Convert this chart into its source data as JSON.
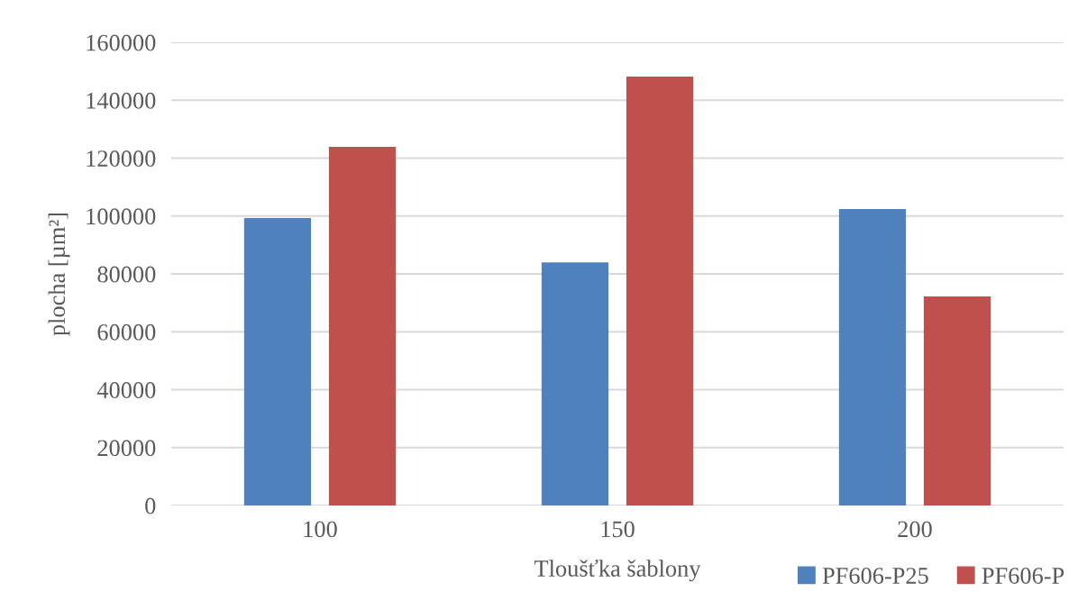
{
  "chart_data": {
    "type": "bar",
    "xlabel": "Tloušťka šablony",
    "ylabel": "plocha [µm²]",
    "categories": [
      "100",
      "150",
      "200"
    ],
    "series": [
      {
        "name": "PF606-P25",
        "color": "#4f81bd",
        "values": [
          99300,
          84000,
          102400
        ]
      },
      {
        "name": "PF606-P",
        "color": "#c0504d",
        "values": [
          123900,
          148200,
          72200
        ]
      }
    ],
    "ylim": [
      0,
      160000
    ],
    "yticks": [
      0,
      20000,
      40000,
      60000,
      80000,
      100000,
      120000,
      140000,
      160000
    ],
    "grid": "y",
    "legend": "bottom right"
  }
}
